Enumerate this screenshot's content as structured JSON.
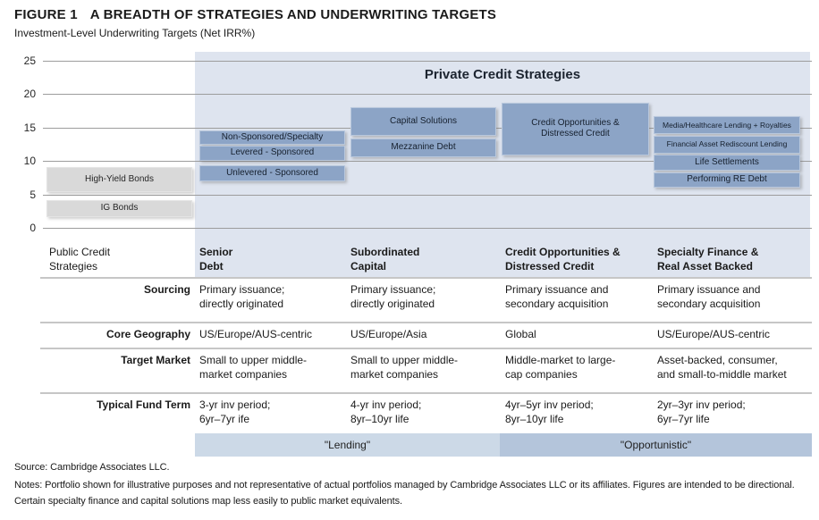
{
  "header": {
    "figure_label": "FIGURE 1",
    "title": "A BREADTH OF STRATEGIES AND UNDERWRITING TARGETS",
    "subtitle": "Investment-Level Underwriting Targets (Net IRR%)"
  },
  "chart_data": {
    "type": "bar",
    "bar_type": "floating-range",
    "title": "Private Credit Strategies",
    "ylabel": "Net IRR %",
    "ylim": [
      0,
      25
    ],
    "yticks": [
      0,
      5,
      10,
      15,
      20,
      25
    ],
    "grid": true,
    "categories": [
      "Public Credit Strategies",
      "Senior Debt",
      "Subordinated Capital",
      "Credit Opportunities & Distressed Credit",
      "Specialty Finance & Real Asset Backed"
    ],
    "bars": [
      {
        "label": "High-Yield Bonds",
        "column": "public-credit",
        "range": [
          5.3,
          9.1
        ],
        "style": "gray"
      },
      {
        "label": "IG Bonds",
        "column": "public-credit",
        "range": [
          1.6,
          4.2
        ],
        "style": "gray"
      },
      {
        "label": "Non-Sponsored/Specialty",
        "column": "senior-debt",
        "range": [
          12.4,
          14.5
        ],
        "style": "blue"
      },
      {
        "label": "Levered - Sponsored",
        "column": "senior-debt",
        "range": [
          10.0,
          12.3
        ],
        "style": "blue"
      },
      {
        "label": "Unlevered - Sponsored",
        "column": "senior-debt",
        "range": [
          7.0,
          9.3
        ],
        "style": "blue"
      },
      {
        "label": "Capital Solutions",
        "column": "subordinated-capital",
        "range": [
          13.8,
          18.0
        ],
        "style": "blue"
      },
      {
        "label": "Mezzanine Debt",
        "column": "subordinated-capital",
        "range": [
          10.5,
          13.4
        ],
        "style": "blue"
      },
      {
        "label": "Credit Opportunities &\nDistressed Credit",
        "column": "credit-opportunities",
        "range": [
          10.8,
          18.7
        ],
        "style": "blue"
      },
      {
        "label": "Media/Healthcare Lending + Royalties",
        "column": "specialty-finance",
        "range": [
          14.0,
          16.7
        ],
        "style": "blue",
        "small": true
      },
      {
        "label": "Financial Asset Rediscount Lending",
        "column": "specialty-finance",
        "range": [
          11.1,
          13.8
        ],
        "style": "blue",
        "small": true
      },
      {
        "label": "Life Settlements",
        "column": "specialty-finance",
        "range": [
          8.6,
          10.9
        ],
        "style": "blue"
      },
      {
        "label": "Performing RE Debt",
        "column": "specialty-finance",
        "range": [
          6.0,
          8.3
        ],
        "style": "blue"
      }
    ]
  },
  "table": {
    "row_header": "Public Credit\nStrategies",
    "columns": [
      "Senior\nDebt",
      "Subordinated\nCapital",
      "Credit Opportunities &\nDistressed Credit",
      "Specialty Finance &\nReal Asset Backed"
    ],
    "rows": [
      {
        "label": "Sourcing",
        "cells": [
          "Primary issuance;\ndirectly originated",
          "Primary issuance;\ndirectly originated",
          "Primary issuance and\nsecondary acquisition",
          "Primary issuance and\nsecondary acquisition"
        ]
      },
      {
        "label": "Core Geography",
        "cells": [
          "US/Europe/AUS-centric",
          "US/Europe/Asia",
          "Global",
          "US/Europe/AUS-centric"
        ]
      },
      {
        "label": "Target Market",
        "cells": [
          "Small to upper middle-\nmarket companies",
          "Small to upper middle-\nmarket companies",
          "Middle-market to large-\ncap companies",
          "Asset-backed, consumer,\nand small-to-middle market"
        ]
      },
      {
        "label": "Typical Fund Term",
        "cells": [
          "3-yr inv period;\n6yr–7yr ife",
          "4-yr inv period;\n8yr–10yr life",
          "4yr–5yr inv period;\n8yr–10yr life",
          "2yr–3yr inv period;\n6yr–7yr life"
        ]
      }
    ],
    "bands": {
      "lending": "\"Lending\"",
      "opportunistic": "\"Opportunistic\""
    }
  },
  "footer": {
    "source": "Source: Cambridge Associates LLC.",
    "notes": "Notes: Portfolio shown for illustrative purposes and not representative of actual portfolios managed by Cambridge Associates LLC or its affiliates. Figures are intended to be directional. Certain specialty finance and capital solutions map less easily to public market equivalents."
  },
  "colors": {
    "blue_box": "#8CA4C6",
    "gray_box": "#D9D9D9",
    "shaded_bg": "#DEE4EF",
    "lending_band": "#CCD9E7",
    "opportunistic_band": "#B4C5DB"
  }
}
